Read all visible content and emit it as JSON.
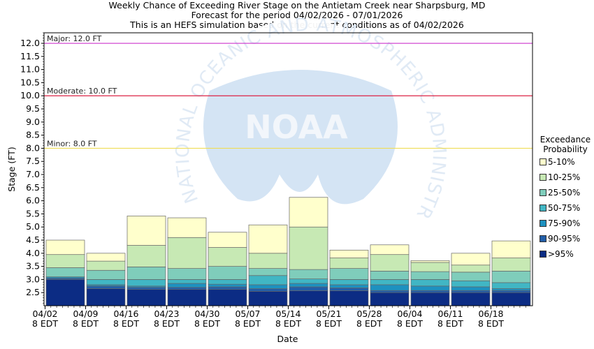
{
  "header": {
    "line1": "Weekly Chance of Exceeding River Stage on the Antietam Creek near Sharpsburg, MD",
    "line2": "Forecast for the period 04/02/2026 - 07/01/2026",
    "line3": "This is an HEFS simulation based on the current conditions as of 04/02/2026"
  },
  "watermark": {
    "logo_text": "NOAA",
    "ring_text": "NATIONAL OCEANIC AND ATMOSPHERIC ADMINISTRATION"
  },
  "legend": {
    "title_line1": "Exceedance",
    "title_line2": "Probability",
    "items": [
      {
        "label": "5-10%",
        "color": "#ffffcc"
      },
      {
        "label": "10-25%",
        "color": "#c7e9b4"
      },
      {
        "label": "25-50%",
        "color": "#7fcdbb"
      },
      {
        "label": "50-75%",
        "color": "#41b6c4"
      },
      {
        "label": "75-90%",
        "color": "#1d91c0"
      },
      {
        "label": "90-95%",
        "color": "#225ea8"
      },
      {
        "label": ">95%",
        "color": "#0c2c84"
      }
    ]
  },
  "chart_data": {
    "type": "bar",
    "stacked": true,
    "xlabel": "Date",
    "ylabel": "Stage (FT)",
    "ylim": [
      2.0,
      12.4
    ],
    "yticks": [
      2.5,
      3.0,
      3.5,
      4.0,
      4.5,
      5.0,
      5.5,
      6.0,
      6.5,
      7.0,
      7.5,
      8.0,
      8.5,
      9.0,
      9.5,
      10.0,
      10.5,
      11.0,
      11.5,
      12.0
    ],
    "ytick_labels": [
      "2.5",
      "3.0",
      "3.5",
      "4.0",
      "4.5",
      "5.0",
      "5.5",
      "6.0",
      "6.5",
      "7.0",
      "7.5",
      "8.0",
      "8.5",
      "9.0",
      "9.5",
      "10.0",
      "10.5",
      "11.0",
      "11.5",
      "12.0"
    ],
    "xticks": [
      {
        "line1": "04/02",
        "line2": "8 EDT"
      },
      {
        "line1": "04/09",
        "line2": "8 EDT"
      },
      {
        "line1": "04/16",
        "line2": "8 EDT"
      },
      {
        "line1": "04/23",
        "line2": "8 EDT"
      },
      {
        "line1": "04/30",
        "line2": "8 EDT"
      },
      {
        "line1": "05/07",
        "line2": "8 EDT"
      },
      {
        "line1": "05/14",
        "line2": "8 EDT"
      },
      {
        "line1": "05/21",
        "line2": "8 EDT"
      },
      {
        "line1": "05/28",
        "line2": "8 EDT"
      },
      {
        "line1": "06/04",
        "line2": "8 EDT"
      },
      {
        "line1": "06/11",
        "line2": "8 EDT"
      },
      {
        "line1": "06/18",
        "line2": "8 EDT"
      }
    ],
    "thresholds": [
      {
        "label": "Major: 12.0 FT",
        "value": 12.0,
        "color": "#cc33cc"
      },
      {
        "label": "Moderate: 10.0 FT",
        "value": 10.0,
        "color": "#dd2244"
      },
      {
        "label": "Minor: 8.0 FT",
        "value": 8.0,
        "color": "#eedd55"
      }
    ],
    "weeks": [
      [
        3.0,
        3.05,
        3.1,
        3.1,
        3.45,
        3.95,
        4.5
      ],
      [
        2.65,
        2.75,
        2.8,
        3.0,
        3.35,
        3.7,
        4.0
      ],
      [
        2.62,
        2.7,
        2.75,
        3.0,
        3.48,
        4.3,
        5.42
      ],
      [
        2.62,
        2.7,
        2.85,
        3.0,
        3.42,
        4.6,
        5.35
      ],
      [
        2.62,
        2.72,
        2.82,
        3.0,
        3.5,
        4.22,
        4.8
      ],
      [
        2.55,
        2.65,
        2.8,
        3.15,
        3.42,
        4.0,
        5.08
      ],
      [
        2.57,
        2.72,
        2.85,
        3.02,
        3.38,
        5.0,
        6.13
      ],
      [
        2.57,
        2.68,
        2.8,
        3.0,
        3.42,
        3.82,
        4.12
      ],
      [
        2.5,
        2.58,
        2.8,
        3.0,
        3.32,
        3.95,
        4.32
      ],
      [
        2.5,
        2.58,
        2.75,
        3.0,
        3.3,
        3.65,
        3.72
      ],
      [
        2.5,
        2.58,
        2.72,
        2.95,
        3.28,
        3.55,
        4.0
      ],
      [
        2.5,
        2.58,
        2.65,
        2.88,
        3.32,
        3.82,
        4.47
      ]
    ],
    "week_labels": [
      "04/02",
      "04/09",
      "04/16",
      "04/23",
      "04/30",
      "05/07",
      "05/14",
      "05/21",
      "05/28",
      "06/04",
      "06/11",
      "06/18"
    ],
    "grid": false,
    "legend_position": "right"
  }
}
